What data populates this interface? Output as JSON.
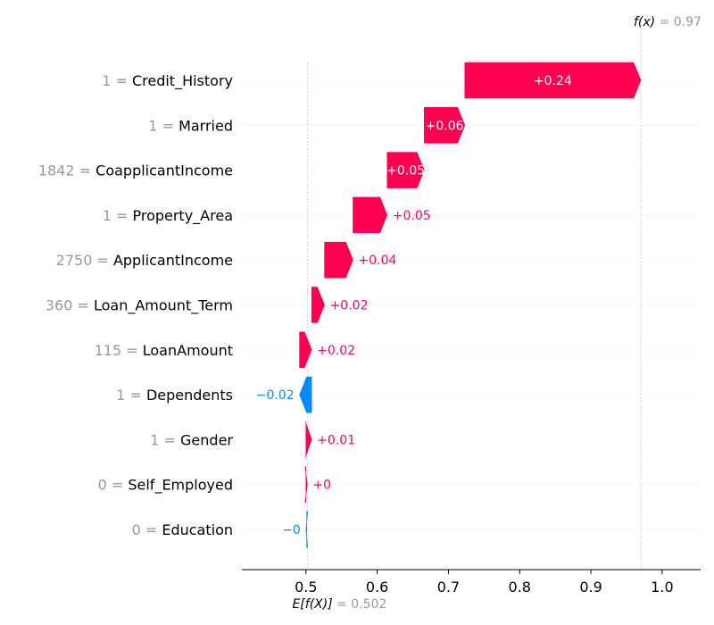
{
  "chart_data": {
    "type": "waterfall",
    "base_value": 0.502,
    "output_value": 0.97,
    "base_label": {
      "symbol": "E[f(X)]",
      "equals": "= ",
      "value": "0.502"
    },
    "output_label": {
      "symbol": "f(x)",
      "equals": "= ",
      "value": "0.97"
    },
    "xlim": [
      0.41,
      1.054
    ],
    "xticks": [
      {
        "value": 0.5,
        "label": "0.5"
      },
      {
        "value": 0.6,
        "label": "0.6"
      },
      {
        "value": 0.7,
        "label": "0.7"
      },
      {
        "value": 0.8,
        "label": "0.8"
      },
      {
        "value": 0.9,
        "label": "0.9"
      },
      {
        "value": 1.0,
        "label": "1.0"
      }
    ],
    "features": [
      {
        "value": "1",
        "name": "Credit_History",
        "start": 0.723,
        "end": 0.97,
        "label": "+0.24",
        "sign": "pos",
        "label_inside": true
      },
      {
        "value": "1",
        "name": "Married",
        "start": 0.666,
        "end": 0.723,
        "label": "+0.06",
        "sign": "pos",
        "label_inside": true
      },
      {
        "value": "1842",
        "name": "CoapplicantIncome",
        "start": 0.614,
        "end": 0.666,
        "label": "+0.05",
        "sign": "pos",
        "label_inside": true
      },
      {
        "value": "1",
        "name": "Property_Area",
        "start": 0.566,
        "end": 0.614,
        "label": "+0.05",
        "sign": "pos",
        "label_inside": false
      },
      {
        "value": "2750",
        "name": "ApplicantIncome",
        "start": 0.526,
        "end": 0.566,
        "label": "+0.04",
        "sign": "pos",
        "label_inside": false
      },
      {
        "value": "360",
        "name": "Loan_Amount_Term",
        "start": 0.508,
        "end": 0.526,
        "label": "+0.02",
        "sign": "pos",
        "label_inside": false
      },
      {
        "value": "115",
        "name": "LoanAmount",
        "start": 0.491,
        "end": 0.508,
        "label": "+0.02",
        "sign": "pos",
        "label_inside": false
      },
      {
        "value": "1",
        "name": "Dependents",
        "start": 0.508,
        "end": 0.491,
        "label": "−0.02",
        "sign": "neg",
        "label_inside": false
      },
      {
        "value": "1",
        "name": "Gender",
        "start": 0.5,
        "end": 0.508,
        "label": "+0.01",
        "sign": "pos",
        "label_inside": false
      },
      {
        "value": "0",
        "name": "Self_Employed",
        "start": 0.5,
        "end": 0.502,
        "label": "+0",
        "sign": "pos",
        "label_inside": false
      },
      {
        "value": "0",
        "name": "Education",
        "start": 0.501,
        "end": 0.5,
        "label": "−0",
        "sign": "neg",
        "label_inside": false
      }
    ],
    "colors": {
      "positive": "#ff0051",
      "negative": "#008bfb",
      "muted_text": "#999999",
      "axis": "#000000",
      "grid": "#cccccc"
    }
  }
}
